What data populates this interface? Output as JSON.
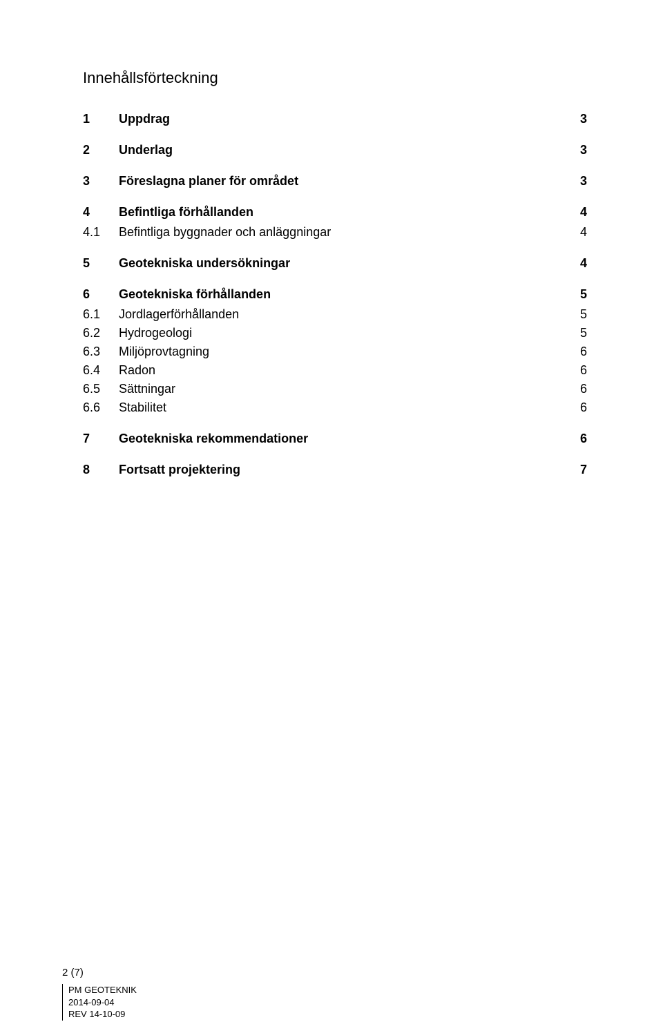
{
  "title": "Innehållsförteckning",
  "entries": [
    {
      "num": "1",
      "label": "Uppdrag",
      "page": "3",
      "level": "main"
    },
    {
      "num": "2",
      "label": "Underlag",
      "page": "3",
      "level": "main"
    },
    {
      "num": "3",
      "label": "Föreslagna planer för området",
      "page": "3",
      "level": "main"
    },
    {
      "num": "4",
      "label": "Befintliga förhållanden",
      "page": "4",
      "level": "main"
    },
    {
      "num": "4.1",
      "label": "Befintliga byggnader och anläggningar",
      "page": "4",
      "level": "sub"
    },
    {
      "num": "5",
      "label": "Geotekniska undersökningar",
      "page": "4",
      "level": "main"
    },
    {
      "num": "6",
      "label": "Geotekniska förhållanden",
      "page": "5",
      "level": "main"
    },
    {
      "num": "6.1",
      "label": "Jordlagerförhållanden",
      "page": "5",
      "level": "sub"
    },
    {
      "num": "6.2",
      "label": "Hydrogeologi",
      "page": "5",
      "level": "sub"
    },
    {
      "num": "6.3",
      "label": "Miljöprovtagning",
      "page": "6",
      "level": "sub"
    },
    {
      "num": "6.4",
      "label": "Radon",
      "page": "6",
      "level": "sub"
    },
    {
      "num": "6.5",
      "label": "Sättningar",
      "page": "6",
      "level": "sub"
    },
    {
      "num": "6.6",
      "label": "Stabilitet",
      "page": "6",
      "level": "sub"
    },
    {
      "num": "7",
      "label": "Geotekniska rekommendationer",
      "page": "6",
      "level": "main"
    },
    {
      "num": "8",
      "label": "Fortsatt projektering",
      "page": "7",
      "level": "main"
    }
  ],
  "footer": {
    "page_num": "2 (7)",
    "line1": "PM GEOTEKNIK",
    "line2": "2014-09-04",
    "line3": "REV 14-10-09"
  },
  "colors": {
    "text": "#000000",
    "background": "#ffffff"
  },
  "typography": {
    "title_fontsize": 22,
    "main_fontsize": 18,
    "sub_fontsize": 18,
    "footer_fontsize": 13
  }
}
